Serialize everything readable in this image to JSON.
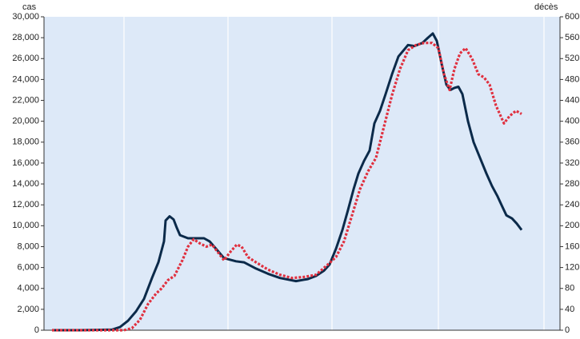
{
  "chart_data": {
    "type": "line",
    "y_label": "cas",
    "y2_label": "décès",
    "xlim": [
      0,
      645
    ],
    "xticks": [
      100,
      230,
      360,
      493,
      625
    ],
    "ylim": [
      0,
      30000
    ],
    "yticks": [
      0,
      {
        "value": 2000,
        "label": "2,000"
      },
      {
        "value": 4000,
        "label": "4,000"
      },
      {
        "value": 6000,
        "label": "6,000"
      },
      {
        "value": 8000,
        "label": "8,000"
      },
      {
        "value": 10000,
        "label": "10,000"
      },
      {
        "value": 12000,
        "label": "12,000"
      },
      {
        "value": 14000,
        "label": "14,000"
      },
      {
        "value": 16000,
        "label": "16,000"
      },
      {
        "value": 18000,
        "label": "18,000"
      },
      {
        "value": 20000,
        "label": "20,000"
      },
      {
        "value": 22000,
        "label": "22,000"
      },
      {
        "value": 24000,
        "label": "24,000"
      },
      {
        "value": 26000,
        "label": "26,000"
      },
      {
        "value": 28000,
        "label": "28,000"
      },
      {
        "value": 30000,
        "label": "30,000"
      }
    ],
    "y2lim": [
      0,
      600
    ],
    "y2ticks": [
      0,
      40,
      80,
      120,
      160,
      200,
      240,
      280,
      320,
      360,
      400,
      440,
      480,
      520,
      560,
      600
    ],
    "grid": true,
    "background": "#dde9f8",
    "series": [
      {
        "color": "#0b2a4a",
        "dash": false,
        "x": [
          10,
          45,
          85,
          95,
          105,
          115,
          125,
          135,
          143,
          150,
          152,
          157,
          162,
          166,
          170,
          180,
          190,
          200,
          207,
          215,
          225,
          240,
          250,
          265,
          280,
          295,
          315,
          330,
          340,
          350,
          357,
          365,
          373,
          380,
          387,
          393,
          400,
          407,
          413,
          420,
          427,
          435,
          443,
          455,
          463,
          473,
          480,
          486,
          491,
          497,
          503,
          508,
          513,
          518,
          523,
          530,
          537,
          545,
          553,
          560,
          567,
          573,
          578,
          585,
          591,
          597
        ],
        "values": [
          0,
          0,
          50,
          300,
          900,
          1800,
          3000,
          5000,
          6500,
          8500,
          10500,
          10900,
          10600,
          9800,
          9100,
          8800,
          8800,
          8800,
          8500,
          7800,
          6900,
          6600,
          6500,
          5900,
          5400,
          5000,
          4700,
          4900,
          5200,
          5700,
          6300,
          7800,
          9600,
          11500,
          13500,
          15000,
          16200,
          17200,
          19800,
          21000,
          22600,
          24500,
          26200,
          27300,
          27200,
          27500,
          28000,
          28400,
          27700,
          25500,
          23500,
          23000,
          23200,
          23300,
          22600,
          20000,
          18000,
          16500,
          15000,
          13800,
          12800,
          11800,
          11000,
          10700,
          10200,
          9600
        ]
      },
      {
        "color": "#e0303f",
        "dash": true,
        "axis": "y2",
        "x": [
          10,
          45,
          100,
          110,
          120,
          130,
          140,
          147,
          155,
          163,
          173,
          180,
          187,
          195,
          203,
          210,
          217,
          225,
          233,
          241,
          247,
          255,
          265,
          280,
          295,
          310,
          325,
          340,
          355,
          365,
          375,
          385,
          395,
          405,
          415,
          425,
          435,
          445,
          455,
          465,
          475,
          485,
          493,
          500,
          507,
          513,
          520,
          527,
          535,
          543,
          550,
          557,
          565,
          575,
          582,
          590,
          597
        ],
        "values": [
          0,
          0,
          0,
          4,
          20,
          50,
          70,
          80,
          96,
          104,
          134,
          160,
          174,
          166,
          160,
          164,
          150,
          134,
          150,
          164,
          160,
          140,
          130,
          116,
          106,
          100,
          102,
          106,
          126,
          140,
          170,
          220,
          270,
          304,
          330,
          390,
          450,
          500,
          536,
          546,
          550,
          550,
          540,
          490,
          460,
          500,
          530,
          540,
          520,
          490,
          484,
          470,
          430,
          396,
          410,
          420,
          414
        ]
      }
    ]
  }
}
